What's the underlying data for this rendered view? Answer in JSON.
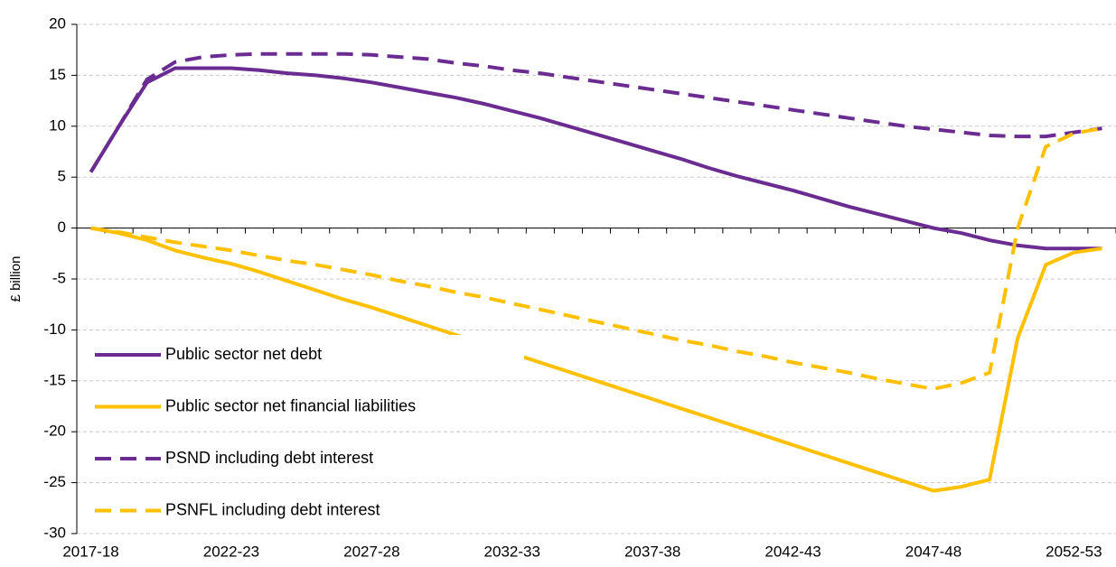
{
  "chart_data": {
    "type": "line",
    "y_label": "£ billion",
    "categories": [
      "2017-18",
      null,
      null,
      null,
      null,
      "2022-23",
      null,
      null,
      null,
      null,
      "2027-28",
      null,
      null,
      null,
      null,
      "2032-33",
      null,
      null,
      null,
      null,
      "2037-38",
      null,
      null,
      null,
      null,
      "2042-43",
      null,
      null,
      null,
      null,
      "2047-48",
      null,
      null,
      null,
      null,
      "2052-53",
      null
    ],
    "ylim": [
      -30,
      20
    ],
    "yticks": [
      -30,
      -25,
      -20,
      -15,
      -10,
      -5,
      0,
      5,
      10,
      15,
      20
    ],
    "grid": true,
    "legend": "lower left",
    "series": [
      {
        "name": "Public sector net debt",
        "color": "#6a2c91",
        "dash": false,
        "values": [
          5.5,
          10,
          14.3,
          15.7,
          15.7,
          15.7,
          15.5,
          15.2,
          15.0,
          14.7,
          14.3,
          13.8,
          13.3,
          12.8,
          12.2,
          11.5,
          10.8,
          10.0,
          9.2,
          8.4,
          7.6,
          6.8,
          5.9,
          5.1,
          4.4,
          3.7,
          2.9,
          2.1,
          1.4,
          0.7,
          0.0,
          -0.5,
          -1.2,
          -1.7,
          -2.0,
          -2.0,
          -2.0
        ]
      },
      {
        "name": "Public sector net financial liabilities",
        "color": "#ffc000",
        "dash": false,
        "values": [
          0,
          -0.5,
          -1.2,
          -2.2,
          -2.9,
          -3.5,
          -4.3,
          -5.2,
          -6.1,
          -7.0,
          -7.8,
          -8.7,
          -9.6,
          -10.5,
          -11.4,
          -12.3,
          -13.2,
          -14.1,
          -15.0,
          -15.9,
          -16.8,
          -17.7,
          -18.6,
          -19.5,
          -20.4,
          -21.3,
          -22.2,
          -23.1,
          -24.0,
          -24.9,
          -25.8,
          -25.4,
          -24.7,
          -10.8,
          -3.6,
          -2.4,
          -2.0
        ]
      },
      {
        "name": "PSND including debt interest",
        "color": "#6a2c91",
        "dash": true,
        "values": [
          5.5,
          10,
          14.6,
          16.3,
          16.8,
          17.0,
          17.1,
          17.1,
          17.1,
          17.1,
          17.0,
          16.8,
          16.6,
          16.2,
          15.9,
          15.5,
          15.2,
          14.8,
          14.4,
          14.0,
          13.6,
          13.2,
          12.8,
          12.4,
          12.0,
          11.6,
          11.2,
          10.8,
          10.4,
          10.0,
          9.7,
          9.4,
          9.1,
          9.0,
          9.0,
          9.4,
          9.8
        ]
      },
      {
        "name": "PSNFL including debt interest",
        "color": "#ffc000",
        "dash": true,
        "values": [
          0,
          -0.4,
          -0.9,
          -1.4,
          -1.8,
          -2.2,
          -2.7,
          -3.2,
          -3.6,
          -4.1,
          -4.6,
          -5.2,
          -5.7,
          -6.3,
          -6.8,
          -7.4,
          -8.0,
          -8.6,
          -9.2,
          -9.8,
          -10.4,
          -11.0,
          -11.5,
          -12.1,
          -12.6,
          -13.2,
          -13.7,
          -14.2,
          -14.8,
          -15.3,
          -15.8,
          -15.2,
          -14.2,
          0.0,
          8.0,
          9.3,
          9.8
        ]
      }
    ]
  }
}
